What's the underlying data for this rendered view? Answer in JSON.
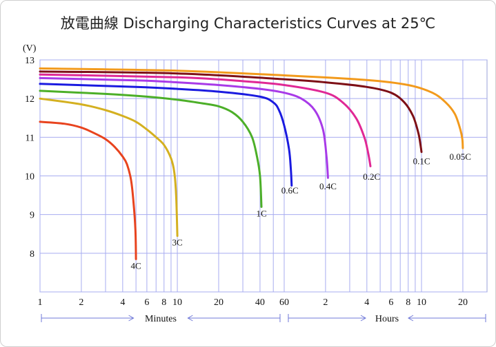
{
  "chart_data": {
    "type": "line",
    "title": "放電曲線 Discharging Characteristics Curves at 25℃",
    "ylabel": "(V)",
    "ylim": [
      7,
      13
    ],
    "y_ticks": [
      "8",
      "9",
      "10",
      "11",
      "12",
      "13"
    ],
    "x_scale": "log",
    "x_unit": "minutes",
    "xlim_minutes": [
      1,
      1800
    ],
    "x_ticks": [
      {
        "label": "1",
        "minutes": 1
      },
      {
        "label": "2",
        "minutes": 2
      },
      {
        "label": "4",
        "minutes": 4
      },
      {
        "label": "6",
        "minutes": 6
      },
      {
        "label": "8",
        "minutes": 8
      },
      {
        "label": "10",
        "minutes": 10
      },
      {
        "label": "20",
        "minutes": 20
      },
      {
        "label": "40",
        "minutes": 40
      },
      {
        "label": "60",
        "minutes": 60
      },
      {
        "label": "2",
        "minutes": 120
      },
      {
        "label": "4",
        "minutes": 240
      },
      {
        "label": "6",
        "minutes": 360
      },
      {
        "label": "8",
        "minutes": 480
      },
      {
        "label": "10",
        "minutes": 600
      },
      {
        "label": "20",
        "minutes": 1200
      }
    ],
    "grid_minutes": [
      1,
      2,
      3,
      4,
      5,
      6,
      7,
      8,
      9,
      10,
      20,
      30,
      40,
      50,
      60,
      120,
      180,
      240,
      300,
      360,
      420,
      480,
      540,
      600,
      1200
    ],
    "x_segments": [
      {
        "label": "Minutes",
        "from_minutes": 1,
        "to_minutes": 60
      },
      {
        "label": "Hours",
        "from_minutes": 60,
        "to_minutes": 1800
      }
    ],
    "grid": true,
    "series": [
      {
        "name": "4C",
        "color": "#e8431e",
        "points": [
          [
            1,
            11.4
          ],
          [
            1.5,
            11.35
          ],
          [
            2,
            11.25
          ],
          [
            2.5,
            11.1
          ],
          [
            3,
            10.95
          ],
          [
            3.5,
            10.75
          ],
          [
            4,
            10.5
          ],
          [
            4.3,
            10.3
          ],
          [
            4.6,
            9.9
          ],
          [
            4.8,
            9.3
          ],
          [
            4.95,
            8.6
          ],
          [
            5,
            7.85
          ]
        ]
      },
      {
        "name": "3C",
        "color": "#d4b020",
        "points": [
          [
            1,
            12.0
          ],
          [
            2,
            11.85
          ],
          [
            3,
            11.7
          ],
          [
            4,
            11.55
          ],
          [
            5,
            11.4
          ],
          [
            6,
            11.2
          ],
          [
            7,
            11.0
          ],
          [
            8,
            10.8
          ],
          [
            9,
            10.45
          ],
          [
            9.5,
            10.1
          ],
          [
            9.8,
            9.5
          ],
          [
            10,
            8.45
          ]
        ]
      },
      {
        "name": "1C",
        "color": "#4caf28",
        "points": [
          [
            1,
            12.2
          ],
          [
            3,
            12.12
          ],
          [
            6,
            12.05
          ],
          [
            10,
            11.97
          ],
          [
            15,
            11.88
          ],
          [
            20,
            11.8
          ],
          [
            25,
            11.65
          ],
          [
            30,
            11.4
          ],
          [
            35,
            11.0
          ],
          [
            38,
            10.5
          ],
          [
            40,
            10.0
          ],
          [
            41,
            9.2
          ]
        ]
      },
      {
        "name": "0.6C",
        "color": "#1a1ae0",
        "points": [
          [
            1,
            12.38
          ],
          [
            5,
            12.3
          ],
          [
            10,
            12.25
          ],
          [
            20,
            12.18
          ],
          [
            40,
            12.05
          ],
          [
            50,
            11.9
          ],
          [
            55,
            11.7
          ],
          [
            60,
            11.3
          ],
          [
            65,
            10.7
          ],
          [
            67,
            10.2
          ],
          [
            68,
            9.75
          ]
        ]
      },
      {
        "name": "0.4C",
        "color": "#a83ae8",
        "points": [
          [
            1,
            12.53
          ],
          [
            5,
            12.47
          ],
          [
            10,
            12.42
          ],
          [
            20,
            12.35
          ],
          [
            40,
            12.25
          ],
          [
            60,
            12.15
          ],
          [
            80,
            12.0
          ],
          [
            100,
            11.7
          ],
          [
            115,
            11.2
          ],
          [
            122,
            10.5
          ],
          [
            125,
            9.95
          ]
        ]
      },
      {
        "name": "0.2C",
        "color": "#e02895",
        "points": [
          [
            1,
            12.62
          ],
          [
            10,
            12.55
          ],
          [
            30,
            12.45
          ],
          [
            60,
            12.35
          ],
          [
            120,
            12.15
          ],
          [
            160,
            11.9
          ],
          [
            200,
            11.5
          ],
          [
            230,
            11.0
          ],
          [
            245,
            10.6
          ],
          [
            255,
            10.25
          ]
        ]
      },
      {
        "name": "0.1C",
        "color": "#7d0f16",
        "points": [
          [
            1,
            12.7
          ],
          [
            10,
            12.65
          ],
          [
            60,
            12.5
          ],
          [
            120,
            12.42
          ],
          [
            240,
            12.3
          ],
          [
            360,
            12.15
          ],
          [
            450,
            11.9
          ],
          [
            520,
            11.55
          ],
          [
            570,
            11.1
          ],
          [
            590,
            10.8
          ],
          [
            600,
            10.62
          ]
        ]
      },
      {
        "name": "0.05C",
        "color": "#f29a1c",
        "points": [
          [
            1,
            12.78
          ],
          [
            10,
            12.72
          ],
          [
            60,
            12.6
          ],
          [
            240,
            12.48
          ],
          [
            480,
            12.35
          ],
          [
            720,
            12.15
          ],
          [
            900,
            11.9
          ],
          [
            1050,
            11.6
          ],
          [
            1150,
            11.2
          ],
          [
            1190,
            10.95
          ],
          [
            1200,
            10.72
          ]
        ]
      }
    ],
    "series_labels": [
      {
        "text": "4C",
        "minutes": 5,
        "volts": 7.6
      },
      {
        "text": "3C",
        "minutes": 10,
        "volts": 8.2
      },
      {
        "text": "1C",
        "minutes": 41,
        "volts": 8.95
      },
      {
        "text": "0.6C",
        "minutes": 66,
        "volts": 9.55
      },
      {
        "text": "0.4C",
        "minutes": 125,
        "volts": 9.65
      },
      {
        "text": "0.2C",
        "minutes": 260,
        "volts": 9.9
      },
      {
        "text": "0.1C",
        "minutes": 600,
        "volts": 10.3
      },
      {
        "text": "0.05C",
        "minutes": 1150,
        "volts": 10.42
      }
    ]
  }
}
